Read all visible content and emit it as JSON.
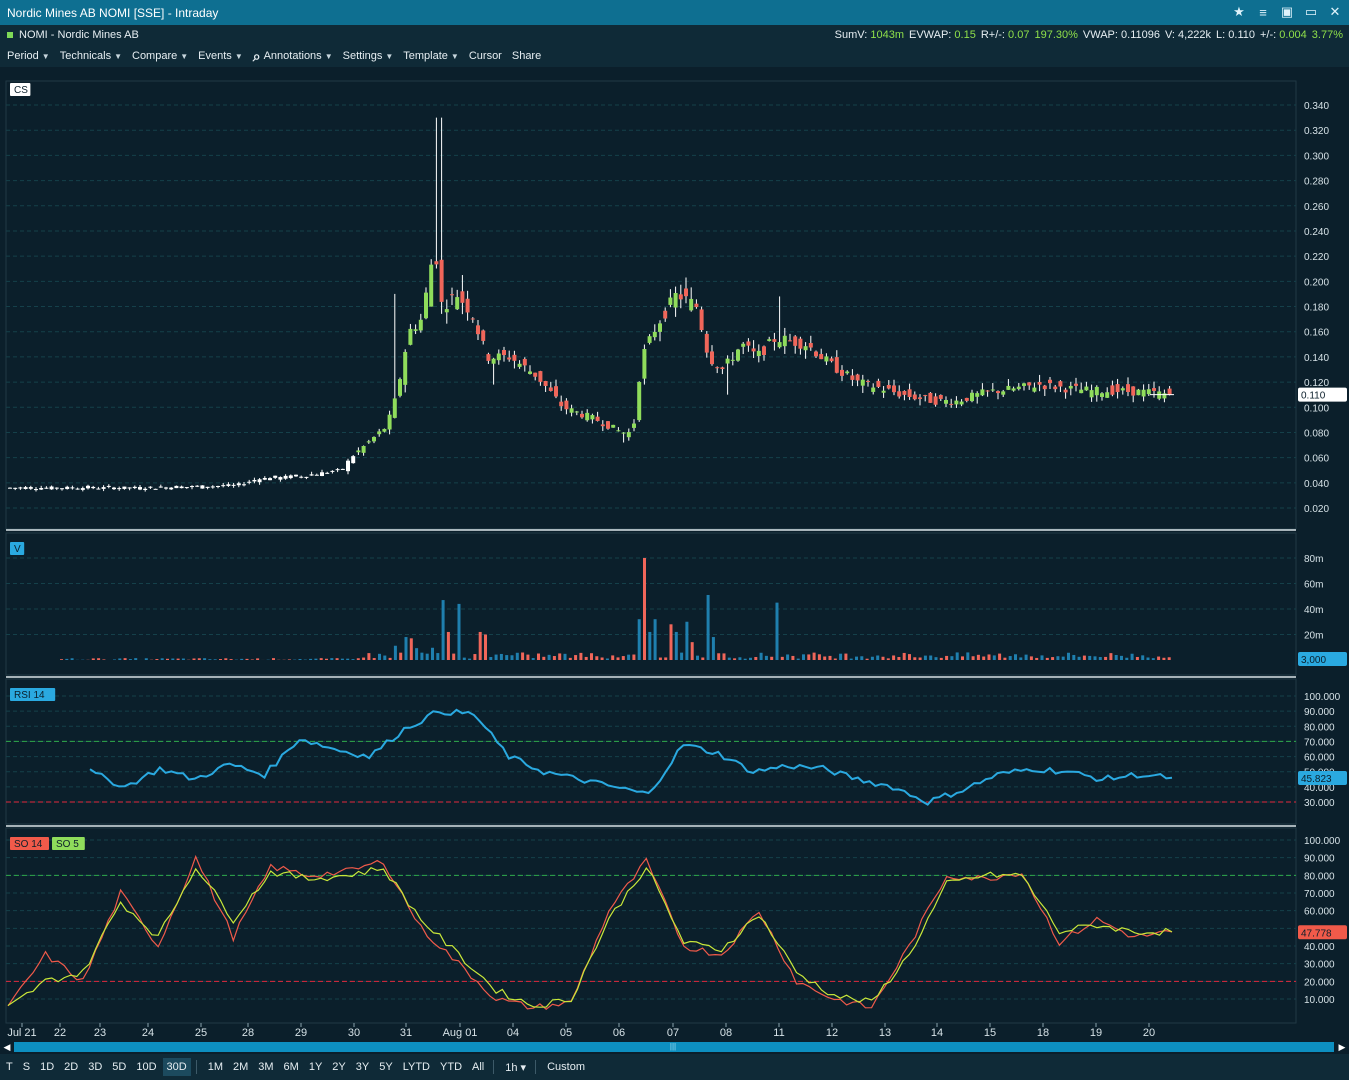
{
  "window": {
    "title": "Nordic Mines AB NOMI [SSE] - Intraday"
  },
  "info": {
    "symbol": "NOMI - Nordic Mines AB",
    "stats": [
      {
        "label": "SumV:",
        "value": "1043m"
      },
      {
        "label": "EVWAP:",
        "value": "0.15"
      },
      {
        "label": "R+/-:",
        "value": "0.07"
      },
      {
        "label": "",
        "value": "197.30%"
      },
      {
        "label": "VWAP:",
        "value": "0.11096"
      },
      {
        "label": "V:",
        "value": "4,222k"
      },
      {
        "label": "L:",
        "value": "0.110"
      },
      {
        "label": "+/-:",
        "value": "0.004"
      },
      {
        "label": "",
        "value": "3.77%"
      }
    ],
    "positive_color": "#8fe04a"
  },
  "menu": {
    "items": [
      {
        "label": "Period",
        "dropdown": true
      },
      {
        "label": "Technicals",
        "dropdown": true
      },
      {
        "label": "Compare",
        "dropdown": true
      },
      {
        "label": "Events",
        "dropdown": true
      },
      {
        "label": "Annotations",
        "dropdown": true,
        "icon": "search-icon"
      },
      {
        "label": "Settings",
        "dropdown": true
      },
      {
        "label": "Template",
        "dropdown": true
      },
      {
        "label": "Cursor",
        "dropdown": false
      },
      {
        "label": "Share",
        "dropdown": false
      }
    ]
  },
  "panels": {
    "price": {
      "tag": "CS",
      "last_value": "0.110",
      "yticks": [
        "0.020",
        "0.040",
        "0.060",
        "0.080",
        "0.100",
        "0.120",
        "0.140",
        "0.160",
        "0.180",
        "0.200",
        "0.220",
        "0.240",
        "0.260",
        "0.280",
        "0.300",
        "0.320",
        "0.340"
      ]
    },
    "volume": {
      "tag": "V",
      "last_value": "3,000",
      "yticks": [
        "20m",
        "40m",
        "60m",
        "80m"
      ]
    },
    "rsi": {
      "tag": "RSI 14",
      "last_value": "45.823",
      "yticks": [
        "30.000",
        "40.000",
        "50.000",
        "60.000",
        "70.000",
        "80.000",
        "90.000",
        "100.000"
      ]
    },
    "so": {
      "tag1": "SO 14",
      "tag2": "SO 5",
      "last_value": "47.778",
      "yticks": [
        "10.000",
        "20.000",
        "30.000",
        "40.000",
        "50.000",
        "60.000",
        "70.000",
        "80.000",
        "90.000",
        "100.000"
      ]
    }
  },
  "xaxis": {
    "labels": [
      "Jul 21",
      "22",
      "23",
      "24",
      "25",
      "28",
      "29",
      "30",
      "31",
      "Aug 01",
      "04",
      "05",
      "06",
      "07",
      "08",
      "11",
      "12",
      "13",
      "14",
      "15",
      "18",
      "19",
      "20"
    ]
  },
  "bottom": {
    "periods": [
      "T",
      "S",
      "1D",
      "2D",
      "3D",
      "5D",
      "10D",
      "30D"
    ],
    "selected_period": "30D",
    "ranges": [
      "1M",
      "2M",
      "3M",
      "6M",
      "1Y",
      "2Y",
      "3Y",
      "5Y",
      "LYTD",
      "YTD",
      "All"
    ],
    "interval": "1h",
    "custom": "Custom"
  },
  "colors": {
    "up": "#8fdc5b",
    "down": "#f0665a",
    "rsi_line": "#2aa9e0",
    "so14_line": "#f05a4a",
    "so5_line": "#c9e83a",
    "vol_up": "#1f7fae",
    "vol_down": "#f0665a"
  },
  "chart_data": {
    "type": "line",
    "title": "",
    "price_path": [
      {
        "d": "Jul 21",
        "v": 0.036
      },
      {
        "d": "22",
        "v": 0.036
      },
      {
        "d": "23",
        "v": 0.036
      },
      {
        "d": "24",
        "v": 0.036
      },
      {
        "d": "25",
        "v": 0.037
      },
      {
        "d": "28",
        "v": 0.04
      },
      {
        "d": "29",
        "v": 0.045
      },
      {
        "d": "30",
        "v": 0.06
      },
      {
        "d": "31",
        "v": 0.11
      },
      {
        "d": "31b",
        "v": 0.17
      },
      {
        "d": "Aug 01",
        "v": 0.19
      },
      {
        "d": "04",
        "v": 0.14
      },
      {
        "d": "05",
        "v": 0.1
      },
      {
        "d": "06",
        "v": 0.08
      },
      {
        "d": "06b",
        "v": 0.14
      },
      {
        "d": "07",
        "v": 0.19
      },
      {
        "d": "08",
        "v": 0.13
      },
      {
        "d": "08b",
        "v": 0.15
      },
      {
        "d": "11",
        "v": 0.155
      },
      {
        "d": "12",
        "v": 0.13
      },
      {
        "d": "13",
        "v": 0.115
      },
      {
        "d": "14",
        "v": 0.105
      },
      {
        "d": "15",
        "v": 0.115
      },
      {
        "d": "18",
        "v": 0.118
      },
      {
        "d": "19",
        "v": 0.113
      },
      {
        "d": "20",
        "v": 0.11
      }
    ],
    "rsi_path": [
      50,
      40,
      52,
      45,
      55,
      48,
      72,
      65,
      60,
      78,
      90,
      88,
      60,
      50,
      45,
      40,
      35,
      68,
      62,
      50,
      54,
      52,
      45,
      40,
      30,
      38,
      48,
      52,
      50,
      45,
      48,
      46
    ],
    "so14_path": [
      5,
      35,
      20,
      70,
      40,
      90,
      45,
      85,
      80,
      82,
      88,
      50,
      30,
      10,
      5,
      8,
      60,
      88,
      40,
      35,
      60,
      20,
      10,
      5,
      40,
      80,
      78,
      82,
      42,
      55,
      45,
      48
    ],
    "so5_path": [
      5,
      20,
      25,
      65,
      45,
      85,
      55,
      82,
      78,
      80,
      84,
      55,
      35,
      15,
      6,
      10,
      55,
      85,
      42,
      38,
      58,
      25,
      12,
      8,
      35,
      75,
      80,
      80,
      48,
      52,
      48,
      48
    ]
  }
}
